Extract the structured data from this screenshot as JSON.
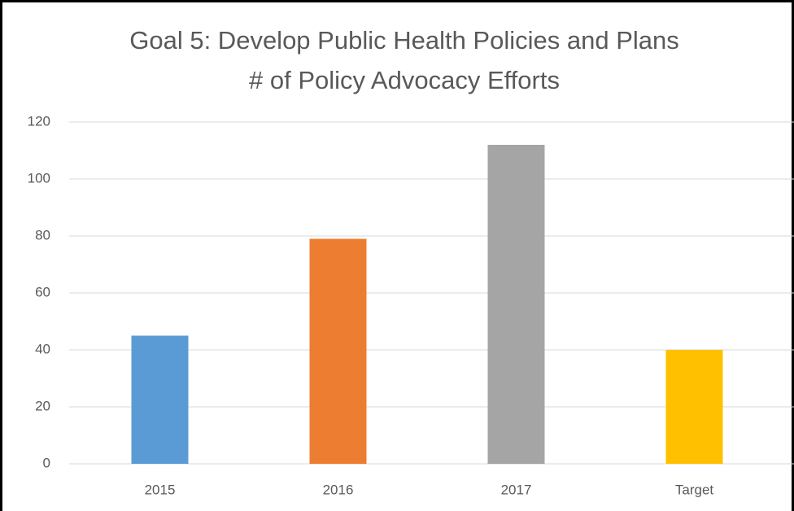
{
  "chart_data": {
    "type": "bar",
    "title": [
      "Goal 5: Develop Public Health Policies and Plans",
      "# of Policy Advocacy Efforts"
    ],
    "categories": [
      "2015",
      "2016",
      "2017",
      "Target"
    ],
    "values": [
      45,
      79,
      112,
      40
    ],
    "colors": [
      "#5b9bd5",
      "#ed7d31",
      "#a5a5a5",
      "#ffc000"
    ],
    "ylim": [
      0,
      120
    ],
    "yticks": [
      0,
      20,
      40,
      60,
      80,
      100,
      120
    ],
    "grid": true
  }
}
